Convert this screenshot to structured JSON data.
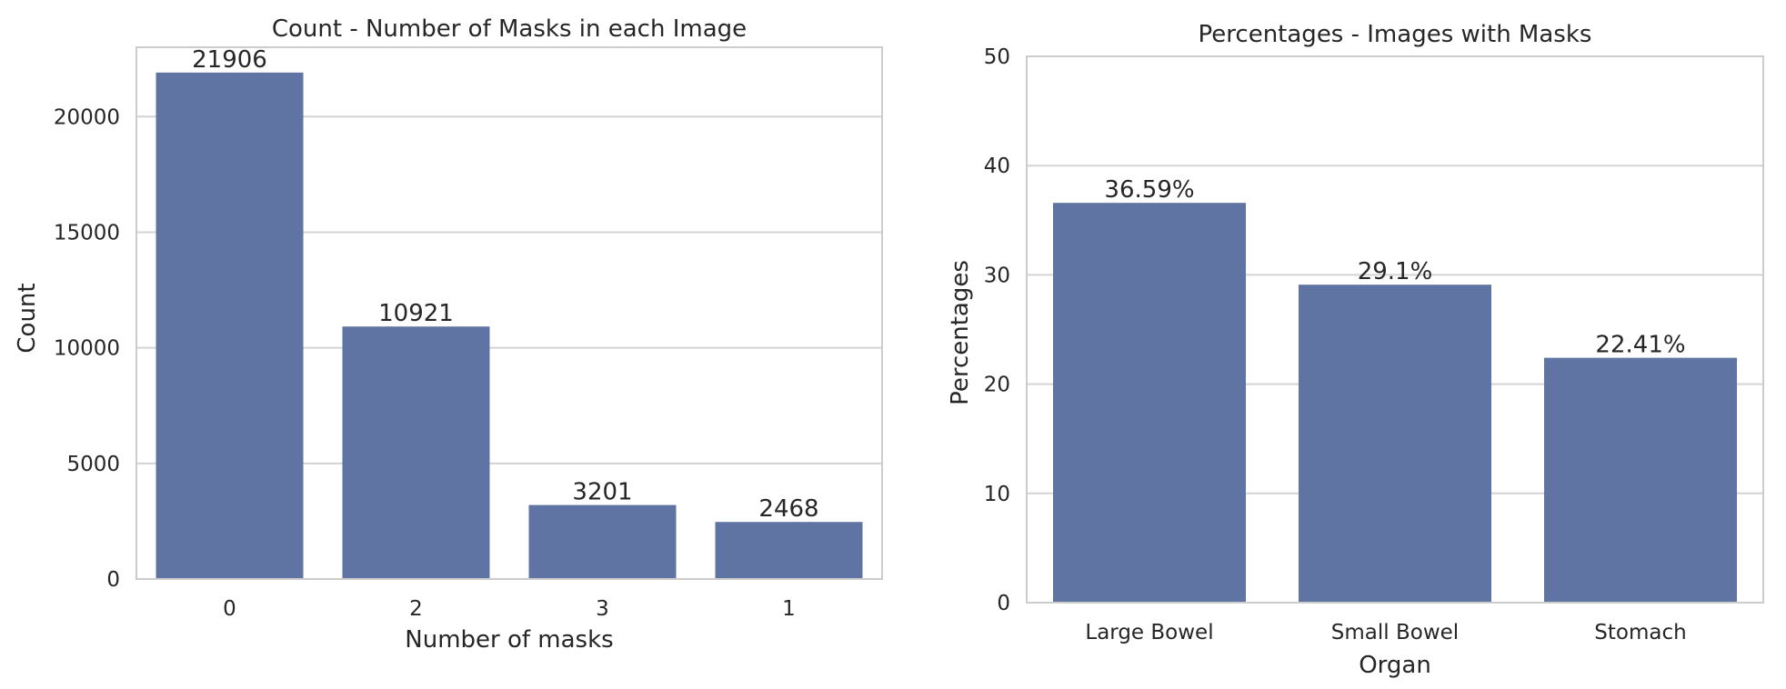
{
  "chart_data": [
    {
      "type": "bar",
      "title": "Count - Number of Masks in each Image",
      "xlabel": "Number of masks",
      "ylabel": "Count",
      "categories": [
        "0",
        "2",
        "3",
        "1"
      ],
      "values": [
        21906,
        10921,
        3201,
        2468
      ],
      "data_labels": [
        "21906",
        "10921",
        "3201",
        "2468"
      ],
      "ylim": [
        0,
        23000
      ],
      "yticks": [
        0,
        5000,
        10000,
        15000,
        20000
      ],
      "grid": true,
      "bar_color": "#5f74a2"
    },
    {
      "type": "bar",
      "title": "Percentages - Images with Masks",
      "xlabel": "Organ",
      "ylabel": "Percentages",
      "categories": [
        "Large Bowel",
        "Small Bowel",
        "Stomach"
      ],
      "values": [
        36.59,
        29.1,
        22.41
      ],
      "data_labels": [
        "36.59%",
        "29.1%",
        "22.41%"
      ],
      "ylim": [
        0,
        50
      ],
      "yticks": [
        0,
        10,
        20,
        30,
        40,
        50
      ],
      "grid": true,
      "bar_color": "#5f74a2"
    }
  ]
}
